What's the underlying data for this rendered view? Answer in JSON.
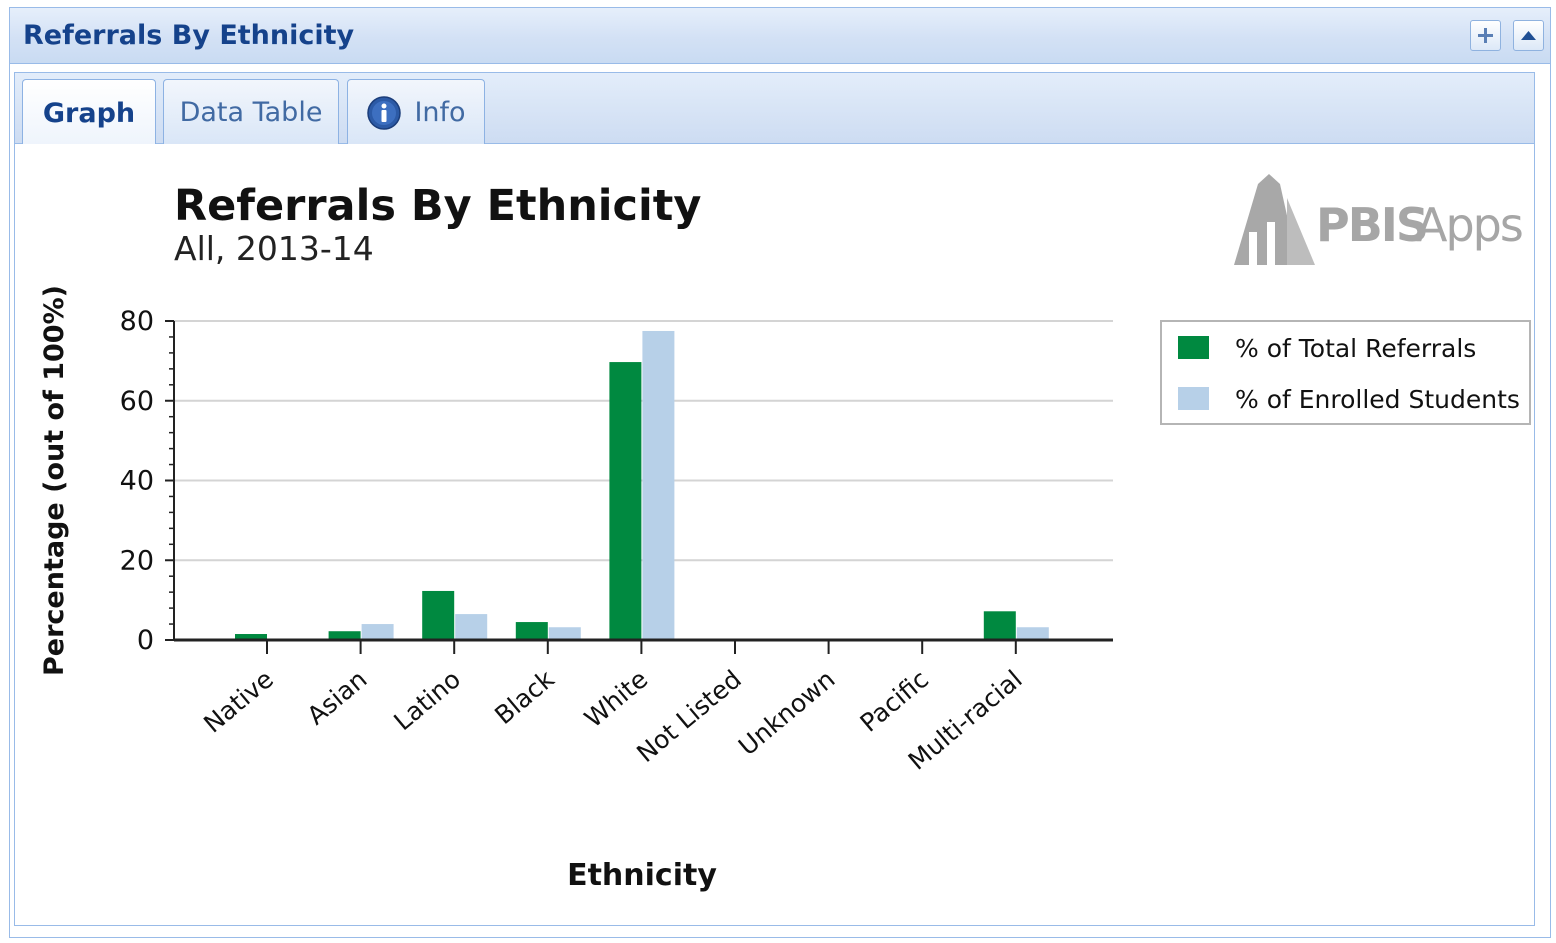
{
  "panel": {
    "title": "Referrals By Ethnicity"
  },
  "tools": {
    "expand_icon": "plus-icon",
    "collapse_icon": "caret-up-icon"
  },
  "tabs": [
    {
      "label": "Graph",
      "active": true
    },
    {
      "label": "Data Table",
      "active": false
    },
    {
      "label": "Info",
      "active": false,
      "icon": "info-icon"
    }
  ],
  "logo": {
    "text_bold": "PBIS",
    "text_light": "Apps"
  },
  "colors": {
    "header_text": "#15428b",
    "referrals": "#008940",
    "enrolled": "#b7d0e8",
    "grid": "#d4d4d4"
  },
  "chart_data": {
    "type": "bar",
    "title": "Referrals By Ethnicity",
    "subtitle": "All, 2013-14",
    "xlabel": "Ethnicity",
    "ylabel": "Percentage (out of 100%)",
    "ylim": [
      0,
      80
    ],
    "yticks": [
      0,
      20,
      40,
      60,
      80
    ],
    "grid": true,
    "legend_position": "right",
    "categories": [
      "Native",
      "Asian",
      "Latino",
      "Black",
      "White",
      "Not Listed",
      "Unknown",
      "Pacific",
      "Multi-racial"
    ],
    "series": [
      {
        "name": "% of Total Referrals",
        "values": [
          1.5,
          2.2,
          12.3,
          4.5,
          69.7,
          0,
          0,
          0,
          7.2
        ]
      },
      {
        "name": "% of Enrolled Students",
        "values": [
          0.3,
          4.0,
          6.5,
          3.2,
          77.5,
          0,
          0,
          0,
          3.2
        ]
      }
    ]
  }
}
